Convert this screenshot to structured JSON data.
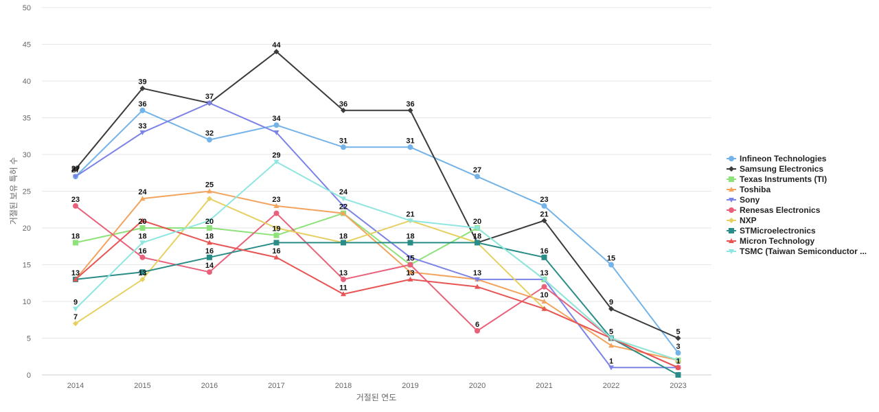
{
  "chart_data": {
    "type": "line",
    "xlabel": "거절된 연도",
    "ylabel": "거절된 보유 특허 수",
    "ylim": [
      0,
      50
    ],
    "ytick_step": 5,
    "grid": true,
    "legend_position": "right",
    "categories": [
      "2014",
      "2015",
      "2016",
      "2017",
      "2018",
      "2019",
      "2020",
      "2021",
      "2022",
      "2023"
    ],
    "series": [
      {
        "name": "Infineon Technologies",
        "color": "#74b3e8",
        "marker": "circle",
        "values": [
          27,
          36,
          32,
          34,
          31,
          31,
          27,
          23,
          15,
          3
        ]
      },
      {
        "name": "Samsung Electronics",
        "color": "#3b3b3b",
        "marker": "diamond",
        "values": [
          28,
          39,
          37,
          44,
          36,
          36,
          18,
          21,
          9,
          5
        ]
      },
      {
        "name": "Texas Instruments (TI)",
        "color": "#8ee27a",
        "marker": "square",
        "values": [
          18,
          20,
          20,
          19,
          22,
          15,
          20,
          13,
          5,
          2
        ]
      },
      {
        "name": "Toshiba",
        "color": "#f2a35e",
        "marker": "triangle",
        "values": [
          13,
          24,
          25,
          23,
          22,
          14,
          13,
          10,
          4,
          2
        ]
      },
      {
        "name": "Sony",
        "color": "#7b83e6",
        "marker": "triangle-down",
        "values": [
          27,
          33,
          37,
          33,
          23,
          16,
          13,
          13,
          1,
          1
        ]
      },
      {
        "name": "Renesas Electronics",
        "color": "#e8607a",
        "marker": "circle",
        "values": [
          23,
          16,
          14,
          22,
          13,
          15,
          6,
          12,
          5,
          1
        ]
      },
      {
        "name": "NXP",
        "color": "#e6d062",
        "marker": "diamond",
        "values": [
          7,
          13,
          24,
          20,
          18,
          21,
          18,
          9,
          5,
          2
        ]
      },
      {
        "name": "STMicroelectronics",
        "color": "#2a8c86",
        "marker": "square",
        "values": [
          13,
          14,
          16,
          18,
          18,
          18,
          18,
          16,
          5,
          0
        ]
      },
      {
        "name": "Micron Technology",
        "color": "#e85454",
        "marker": "triangle",
        "values": [
          13,
          21,
          18,
          16,
          11,
          13,
          12,
          9,
          5,
          1
        ]
      },
      {
        "name": "TSMC (Taiwan Semiconductor ...",
        "color": "#8ee6e0",
        "marker": "triangle-down",
        "values": [
          9,
          18,
          21,
          29,
          24,
          21,
          20,
          13,
          5,
          2
        ]
      }
    ],
    "data_labels": [
      {
        "x": "2014",
        "value": "27"
      },
      {
        "x": "2014",
        "value": "27"
      },
      {
        "x": "2014",
        "value": "23"
      },
      {
        "x": "2014",
        "value": "18"
      },
      {
        "x": "2014",
        "value": "13"
      },
      {
        "x": "2014",
        "value": "9"
      },
      {
        "x": "2014",
        "value": "7"
      },
      {
        "x": "2015",
        "value": "39"
      },
      {
        "x": "2015",
        "value": "36"
      },
      {
        "x": "2015",
        "value": "33"
      },
      {
        "x": "2015",
        "value": "24"
      },
      {
        "x": "2015",
        "value": "20"
      },
      {
        "x": "2015",
        "value": "18"
      },
      {
        "x": "2015",
        "value": "16"
      },
      {
        "x": "2015",
        "value": "13"
      },
      {
        "x": "2016",
        "value": "37"
      },
      {
        "x": "2016",
        "value": "32"
      },
      {
        "x": "2016",
        "value": "25"
      },
      {
        "x": "2016",
        "value": "20"
      },
      {
        "x": "2016",
        "value": "18"
      },
      {
        "x": "2016",
        "value": "16"
      },
      {
        "x": "2016",
        "value": "14"
      },
      {
        "x": "2017",
        "value": "44"
      },
      {
        "x": "2017",
        "value": "34"
      },
      {
        "x": "2017",
        "value": "29"
      },
      {
        "x": "2017",
        "value": "23"
      },
      {
        "x": "2017",
        "value": "19"
      },
      {
        "x": "2017",
        "value": "16"
      },
      {
        "x": "2018",
        "value": "36"
      },
      {
        "x": "2018",
        "value": "31"
      },
      {
        "x": "2018",
        "value": "24"
      },
      {
        "x": "2018",
        "value": "22"
      },
      {
        "x": "2018",
        "value": "18"
      },
      {
        "x": "2018",
        "value": "13"
      },
      {
        "x": "2018",
        "value": "11"
      },
      {
        "x": "2019",
        "value": "36"
      },
      {
        "x": "2019",
        "value": "31"
      },
      {
        "x": "2019",
        "value": "21"
      },
      {
        "x": "2019",
        "value": "18"
      },
      {
        "x": "2019",
        "value": "15"
      },
      {
        "x": "2019",
        "value": "13"
      },
      {
        "x": "2020",
        "value": "27"
      },
      {
        "x": "2020",
        "value": "20"
      },
      {
        "x": "2020",
        "value": "18"
      },
      {
        "x": "2020",
        "value": "13"
      },
      {
        "x": "2020",
        "value": "6"
      },
      {
        "x": "2021",
        "value": "23"
      },
      {
        "x": "2021",
        "value": "21"
      },
      {
        "x": "2021",
        "value": "16"
      },
      {
        "x": "2021",
        "value": "13"
      },
      {
        "x": "2021",
        "value": "10"
      },
      {
        "x": "2022",
        "value": "15"
      },
      {
        "x": "2022",
        "value": "9"
      },
      {
        "x": "2022",
        "value": "5"
      },
      {
        "x": "2022",
        "value": "1"
      },
      {
        "x": "2023",
        "value": "5"
      },
      {
        "x": "2023",
        "value": "3"
      },
      {
        "x": "2023",
        "value": "1"
      }
    ]
  }
}
